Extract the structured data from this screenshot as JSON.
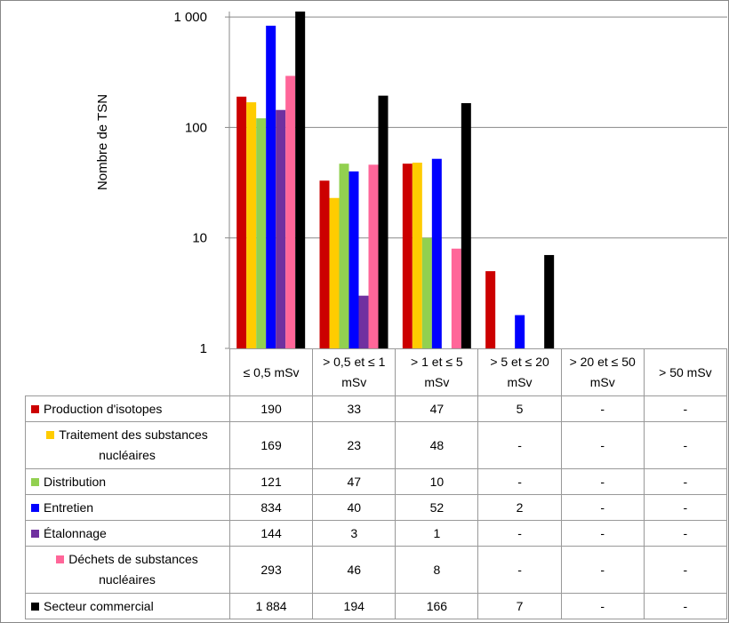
{
  "chart_data": {
    "type": "bar",
    "log_scale": true,
    "grid": true,
    "y_label": "Nombre de TSN",
    "categories": [
      "≤ 0,5 mSv",
      "> 0,5 et ≤ 1 mSv",
      "> 1 et ≤ 5 mSv",
      "> 5 et ≤ 20 mSv",
      "> 20 et ≤ 50 mSv",
      "> 50 mSv"
    ],
    "ylim": [
      1,
      1120
    ],
    "yticks": [
      1,
      10,
      100,
      {
        "value": 1000,
        "label": "1 000"
      }
    ],
    "series": [
      {
        "name": "Production d'isotopes",
        "color": "#cc0000",
        "values": [
          190,
          33,
          47,
          5,
          null,
          null
        ],
        "value_labels": [
          "190",
          "33",
          "47",
          "5",
          "-",
          "-"
        ]
      },
      {
        "name": "Traitement des substances nucléaires",
        "color": "#ffcc00",
        "values": [
          169,
          23,
          48,
          null,
          null,
          null
        ],
        "value_labels": [
          "169",
          "23",
          "48",
          "-",
          "-",
          "-"
        ]
      },
      {
        "name": "Distribution",
        "color": "#92d050",
        "values": [
          121,
          47,
          10,
          null,
          null,
          null
        ],
        "value_labels": [
          "121",
          "47",
          "10",
          "-",
          "-",
          "-"
        ]
      },
      {
        "name": "Entretien",
        "color": "#0000ff",
        "values": [
          834,
          40,
          52,
          2,
          null,
          null
        ],
        "value_labels": [
          "834",
          "40",
          "52",
          "2",
          "-",
          "-"
        ]
      },
      {
        "name": "Étalonnage",
        "color": "#7030a0",
        "values": [
          144,
          3,
          1,
          null,
          null,
          null
        ],
        "value_labels": [
          "144",
          "3",
          "1",
          "-",
          "-",
          "-"
        ]
      },
      {
        "name": "Déchets de substances nucléaires",
        "color": "#ff6699",
        "values": [
          293,
          46,
          8,
          null,
          null,
          null
        ],
        "value_labels": [
          "293",
          "46",
          "8",
          "-",
          "-",
          "-"
        ]
      },
      {
        "name": "Secteur commercial",
        "color": "#000000",
        "values": [
          1884,
          194,
          166,
          7,
          null,
          null
        ],
        "value_labels": [
          "1 884",
          "194",
          "166",
          "7",
          "-",
          "-"
        ]
      }
    ]
  }
}
